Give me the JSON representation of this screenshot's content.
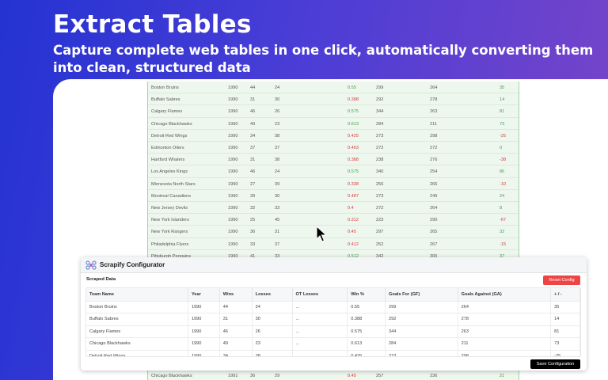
{
  "hero": {
    "title": "Extract Tables",
    "subtitle": "Capture complete web tables in one click, automatically converting them into clean, structured data"
  },
  "colors": {
    "positive": "#4a9a4f",
    "negative": "#cc4444",
    "reset": "#ef4444"
  },
  "background_table": {
    "rows": [
      [
        "Boston Bruins",
        "1990",
        "44",
        "24",
        "0.55",
        "299",
        "264",
        "35"
      ],
      [
        "Buffalo Sabres",
        "1990",
        "31",
        "30",
        "0.388",
        "292",
        "278",
        "14"
      ],
      [
        "Calgary Flames",
        "1990",
        "46",
        "26",
        "0.575",
        "344",
        "263",
        "81"
      ],
      [
        "Chicago Blackhawks",
        "1990",
        "49",
        "23",
        "0.613",
        "284",
        "211",
        "73"
      ],
      [
        "Detroit Red Wings",
        "1990",
        "34",
        "38",
        "0.425",
        "273",
        "298",
        "-25"
      ],
      [
        "Edmonton Oilers",
        "1990",
        "37",
        "37",
        "0.463",
        "272",
        "272",
        "0"
      ],
      [
        "Hartford Whalers",
        "1990",
        "31",
        "38",
        "0.388",
        "238",
        "276",
        "-38"
      ],
      [
        "Los Angeles Kings",
        "1990",
        "46",
        "24",
        "0.575",
        "340",
        "254",
        "86"
      ],
      [
        "Minnesota North Stars",
        "1990",
        "27",
        "39",
        "0.338",
        "256",
        "266",
        "-10"
      ],
      [
        "Montreal Canadiens",
        "1990",
        "39",
        "30",
        "0.487",
        "273",
        "249",
        "24"
      ],
      [
        "New Jersey Devils",
        "1990",
        "32",
        "33",
        "0.4",
        "272",
        "264",
        "8"
      ],
      [
        "New York Islanders",
        "1990",
        "25",
        "45",
        "0.312",
        "223",
        "290",
        "-67"
      ],
      [
        "New York Rangers",
        "1990",
        "36",
        "31",
        "0.45",
        "297",
        "265",
        "32"
      ],
      [
        "Philadelphia Flyers",
        "1990",
        "33",
        "37",
        "0.412",
        "252",
        "267",
        "-15"
      ],
      [
        "Pittsburgh Penguins",
        "1990",
        "41",
        "33",
        "0.512",
        "342",
        "305",
        "37"
      ]
    ],
    "bottom_row": [
      "Chicago Blackhawks",
      "1991",
      "36",
      "29",
      "0.45",
      "257",
      "236",
      "21"
    ]
  },
  "configurator": {
    "title": "Scrapify Configurator",
    "icon": "scrapify-logo-icon",
    "section": "Scraped Data",
    "reset_label": "Reset Config",
    "save_label": "Save Configuration",
    "columns": [
      "Team Name",
      "Year",
      "Wins",
      "Losses",
      "OT Losses",
      "Win %",
      "Goals For (GF)",
      "Goals Against (GA)",
      "+ / -"
    ],
    "rows": [
      [
        "Boston Bruins",
        "1990",
        "44",
        "24",
        "...",
        "0.55",
        "299",
        "264",
        "35"
      ],
      [
        "Buffalo Sabres",
        "1990",
        "31",
        "30",
        "...",
        "0.388",
        "292",
        "278",
        "14"
      ],
      [
        "Calgary Flames",
        "1990",
        "46",
        "26",
        "...",
        "0.575",
        "344",
        "263",
        "81"
      ],
      [
        "Chicago Blackhawks",
        "1990",
        "49",
        "23",
        "...",
        "0.613",
        "284",
        "211",
        "73"
      ],
      [
        "Detroit Red Wings",
        "1990",
        "34",
        "38",
        "...",
        "0.425",
        "273",
        "298",
        "-25"
      ]
    ]
  }
}
